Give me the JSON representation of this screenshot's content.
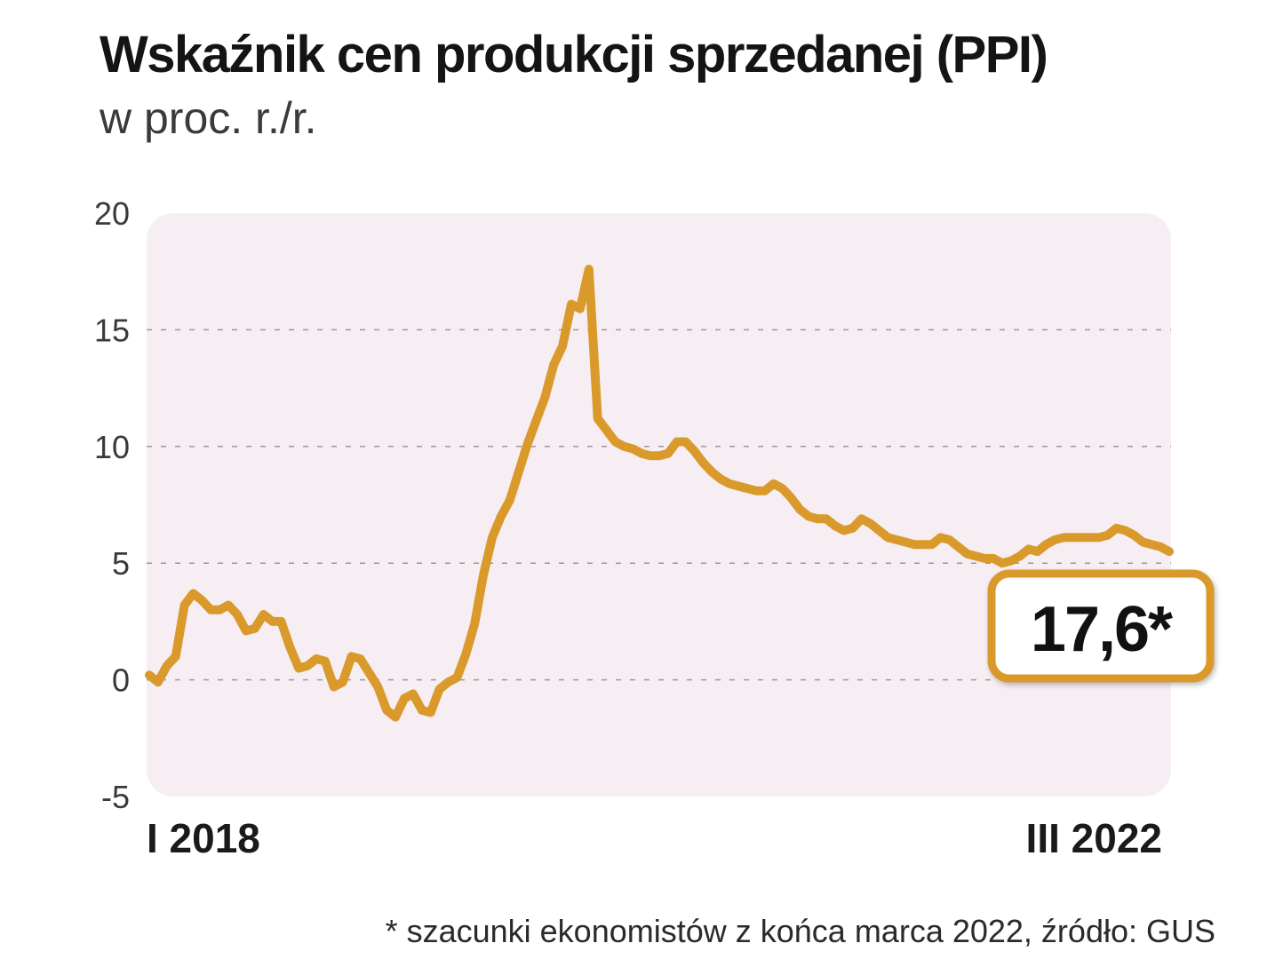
{
  "header": {
    "title": "Wskaźnik cen produkcji sprzedanej (PPI)",
    "subtitle": "w proc. r./r."
  },
  "footer": {
    "source": "* szacunki ekonomistów z końca marca 2022, źródło: GUS"
  },
  "colors": {
    "line": "#d99a2b",
    "plot_bg": "#f7eef3",
    "grid": "#999999",
    "badge_border": "#d99a2b"
  },
  "chart_data": {
    "type": "line",
    "title": "Wskaźnik cen produkcji sprzedanej (PPI)",
    "subtitle": "w proc. r./r.",
    "xlabel": "",
    "ylabel": "",
    "x_labels": [
      "I 2018",
      "III 2022"
    ],
    "ylim": [
      -5,
      20
    ],
    "yticks": [
      "-5",
      "0",
      "5",
      "10",
      "15",
      "20"
    ],
    "grid": true,
    "callout": "17,6*",
    "series": [
      {
        "name": "PPI r./r.",
        "values": [
          0.2,
          -0.1,
          0.6,
          1.0,
          3.2,
          3.7,
          3.4,
          3.0,
          3.0,
          3.2,
          2.8,
          2.1,
          2.2,
          2.8,
          2.5,
          2.5,
          1.4,
          0.5,
          0.6,
          0.9,
          0.8,
          -0.3,
          -0.1,
          1.0,
          0.9,
          0.3,
          -0.3,
          -1.3,
          -1.6,
          -0.8,
          -0.6,
          -1.3,
          -1.4,
          -0.4,
          -0.1,
          0.1,
          1.1,
          2.4,
          4.5,
          6.1,
          7.0,
          7.7,
          8.9,
          10.1,
          11.1,
          12.1,
          13.5,
          14.3,
          16.1,
          15.9,
          17.6,
          11.2,
          10.7,
          10.2,
          10.0,
          9.9,
          9.7,
          9.6,
          9.6,
          9.7,
          10.2,
          10.2,
          9.8,
          9.3,
          8.9,
          8.6,
          8.4,
          8.3,
          8.2,
          8.1,
          8.1,
          8.4,
          8.2,
          7.8,
          7.3,
          7.0,
          6.9,
          6.9,
          6.6,
          6.4,
          6.5,
          6.9,
          6.7,
          6.4,
          6.1,
          6.0,
          5.9,
          5.8,
          5.8,
          5.8,
          6.1,
          6.0,
          5.7,
          5.4,
          5.3,
          5.2,
          5.2,
          5.0,
          5.1,
          5.3,
          5.6,
          5.5,
          5.8,
          6.0,
          6.1,
          6.1,
          6.1,
          6.1,
          6.1,
          6.2,
          6.5,
          6.4,
          6.2,
          5.9,
          5.8,
          5.7,
          5.5
        ]
      }
    ]
  }
}
